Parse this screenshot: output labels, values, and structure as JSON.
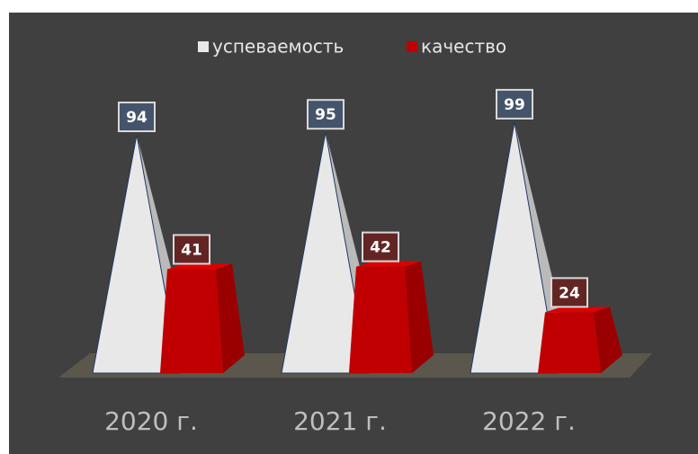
{
  "chart_data": {
    "type": "bar",
    "categories": [
      "2020 г.",
      "2021 г.",
      "2022 г."
    ],
    "series": [
      {
        "name": "успеваемость",
        "color": "#e8e8e8",
        "values": [
          94,
          95,
          99
        ]
      },
      {
        "name": "качество",
        "color": "#c00000",
        "values": [
          41,
          42,
          24
        ]
      }
    ],
    "legend": "top"
  }
}
